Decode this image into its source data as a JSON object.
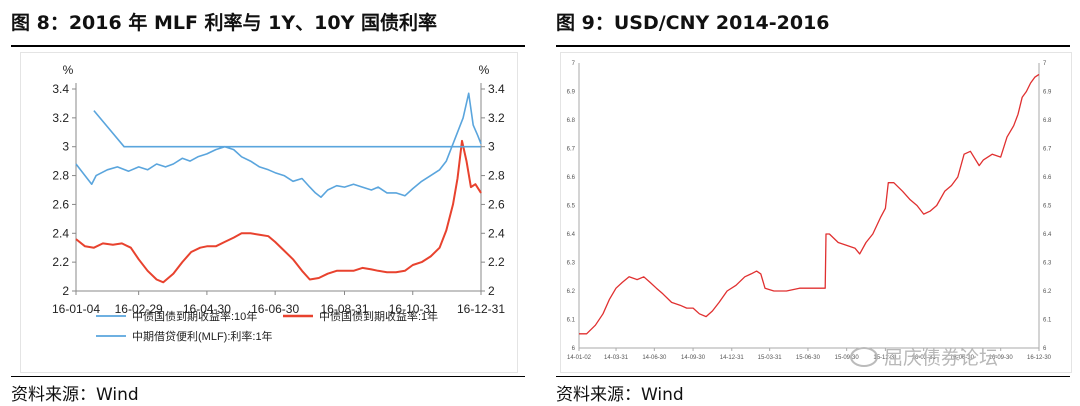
{
  "left_title": "图 8：2016 年 MLF 利率与 1Y、10Y 国债利率",
  "right_title": "图 9：USD/CNY 2014-2016",
  "left_source": "资料来源：Wind",
  "right_source": "资料来源：Wind",
  "watermark": "屈庆债券论坛",
  "colors": {
    "blue": "#5aa5dd",
    "red": "#e8422e",
    "usd_red": "#e03030"
  },
  "chart_data": [
    {
      "type": "line",
      "title": "",
      "ylabel_left": "%",
      "ylabel_right": "%",
      "ylim": [
        2.0,
        3.4
      ],
      "yticks": [
        "2",
        "2.2",
        "2.4",
        "2.6",
        "2.8",
        "3",
        "3.2",
        "3.4"
      ],
      "xlim": [
        "2016-01-04",
        "2016-12-31"
      ],
      "xticks": [
        "16-01-04",
        "16-02-29",
        "16-04-30",
        "16-06-30",
        "16-08-31",
        "16-10-31",
        "16-12-31"
      ],
      "grid": false,
      "legend_position": "bottom",
      "series": [
        {
          "name": "中债国债到期收益率:10年",
          "color": "#5aa5dd",
          "points": [
            [
              "2016-01-04",
              2.88
            ],
            [
              "2016-01-12",
              2.8
            ],
            [
              "2016-01-18",
              2.74
            ],
            [
              "2016-01-22",
              2.8
            ],
            [
              "2016-02-01",
              2.84
            ],
            [
              "2016-02-10",
              2.86
            ],
            [
              "2016-02-20",
              2.83
            ],
            [
              "2016-02-29",
              2.86
            ],
            [
              "2016-03-08",
              2.84
            ],
            [
              "2016-03-16",
              2.88
            ],
            [
              "2016-03-24",
              2.86
            ],
            [
              "2016-03-31",
              2.88
            ],
            [
              "2016-04-08",
              2.92
            ],
            [
              "2016-04-15",
              2.9
            ],
            [
              "2016-04-22",
              2.93
            ],
            [
              "2016-04-30",
              2.95
            ],
            [
              "2016-05-08",
              2.98
            ],
            [
              "2016-05-16",
              3.0
            ],
            [
              "2016-05-24",
              2.98
            ],
            [
              "2016-05-31",
              2.93
            ],
            [
              "2016-06-08",
              2.9
            ],
            [
              "2016-06-16",
              2.86
            ],
            [
              "2016-06-24",
              2.84
            ],
            [
              "2016-06-30",
              2.82
            ],
            [
              "2016-07-08",
              2.8
            ],
            [
              "2016-07-16",
              2.76
            ],
            [
              "2016-07-24",
              2.78
            ],
            [
              "2016-07-31",
              2.72
            ],
            [
              "2016-08-05",
              2.68
            ],
            [
              "2016-08-10",
              2.65
            ],
            [
              "2016-08-16",
              2.7
            ],
            [
              "2016-08-24",
              2.73
            ],
            [
              "2016-08-31",
              2.72
            ],
            [
              "2016-09-08",
              2.74
            ],
            [
              "2016-09-16",
              2.72
            ],
            [
              "2016-09-24",
              2.7
            ],
            [
              "2016-09-30",
              2.72
            ],
            [
              "2016-10-08",
              2.68
            ],
            [
              "2016-10-16",
              2.68
            ],
            [
              "2016-10-24",
              2.66
            ],
            [
              "2016-10-31",
              2.71
            ],
            [
              "2016-11-08",
              2.76
            ],
            [
              "2016-11-16",
              2.8
            ],
            [
              "2016-11-24",
              2.84
            ],
            [
              "2016-11-30",
              2.9
            ],
            [
              "2016-12-05",
              3.0
            ],
            [
              "2016-12-10",
              3.1
            ],
            [
              "2016-12-15",
              3.2
            ],
            [
              "2016-12-20",
              3.37
            ],
            [
              "2016-12-24",
              3.15
            ],
            [
              "2016-12-28",
              3.08
            ],
            [
              "2016-12-31",
              3.02
            ]
          ]
        },
        {
          "name": "中债国债到期收益率:1年",
          "color": "#e8422e",
          "points": [
            [
              "2016-01-04",
              2.36
            ],
            [
              "2016-01-12",
              2.31
            ],
            [
              "2016-01-20",
              2.3
            ],
            [
              "2016-01-28",
              2.33
            ],
            [
              "2016-02-06",
              2.32
            ],
            [
              "2016-02-14",
              2.33
            ],
            [
              "2016-02-22",
              2.3
            ],
            [
              "2016-02-29",
              2.22
            ],
            [
              "2016-03-08",
              2.14
            ],
            [
              "2016-03-16",
              2.08
            ],
            [
              "2016-03-22",
              2.06
            ],
            [
              "2016-03-31",
              2.12
            ],
            [
              "2016-04-08",
              2.2
            ],
            [
              "2016-04-16",
              2.27
            ],
            [
              "2016-04-24",
              2.3
            ],
            [
              "2016-04-30",
              2.31
            ],
            [
              "2016-05-08",
              2.31
            ],
            [
              "2016-05-16",
              2.34
            ],
            [
              "2016-05-24",
              2.37
            ],
            [
              "2016-05-31",
              2.4
            ],
            [
              "2016-06-08",
              2.4
            ],
            [
              "2016-06-16",
              2.39
            ],
            [
              "2016-06-24",
              2.38
            ],
            [
              "2016-06-30",
              2.34
            ],
            [
              "2016-07-08",
              2.28
            ],
            [
              "2016-07-16",
              2.22
            ],
            [
              "2016-07-24",
              2.14
            ],
            [
              "2016-07-31",
              2.08
            ],
            [
              "2016-08-08",
              2.09
            ],
            [
              "2016-08-16",
              2.12
            ],
            [
              "2016-08-24",
              2.14
            ],
            [
              "2016-08-31",
              2.14
            ],
            [
              "2016-09-08",
              2.14
            ],
            [
              "2016-09-16",
              2.16
            ],
            [
              "2016-09-24",
              2.15
            ],
            [
              "2016-09-30",
              2.14
            ],
            [
              "2016-10-08",
              2.13
            ],
            [
              "2016-10-16",
              2.13
            ],
            [
              "2016-10-24",
              2.14
            ],
            [
              "2016-10-31",
              2.18
            ],
            [
              "2016-11-08",
              2.2
            ],
            [
              "2016-11-16",
              2.24
            ],
            [
              "2016-11-24",
              2.3
            ],
            [
              "2016-11-30",
              2.42
            ],
            [
              "2016-12-06",
              2.6
            ],
            [
              "2016-12-10",
              2.78
            ],
            [
              "2016-12-14",
              3.04
            ],
            [
              "2016-12-18",
              2.9
            ],
            [
              "2016-12-22",
              2.72
            ],
            [
              "2016-12-26",
              2.74
            ],
            [
              "2016-12-31",
              2.68
            ]
          ]
        },
        {
          "name": "中期借贷便利(MLF):利率:1年",
          "color": "#5aa5dd",
          "points": [
            [
              "2016-01-20",
              3.25
            ],
            [
              "2016-02-16",
              3.0
            ],
            [
              "2016-12-31",
              3.0
            ]
          ]
        }
      ]
    },
    {
      "type": "line",
      "title": "",
      "ylim": [
        6.0,
        7.0
      ],
      "yticks": [
        "6",
        "6.1",
        "6.2",
        "6.3",
        "6.4",
        "6.5",
        "6.6",
        "6.7",
        "6.8",
        "6.9",
        "7"
      ],
      "xlim": [
        "2014-01-02",
        "2016-12-30"
      ],
      "xticks": [
        "14-01-02",
        "14-03-31",
        "14-06-30",
        "14-09-30",
        "14-12-31",
        "15-03-31",
        "15-06-30",
        "15-09-30",
        "15-12-31",
        "16-03-31",
        "16-06-30",
        "16-09-30",
        "16-12-30"
      ],
      "grid": false,
      "legend_position": "none",
      "series": [
        {
          "name": "",
          "color": "#e03030",
          "points": [
            [
              "2014-01-02",
              6.05
            ],
            [
              "2014-01-20",
              6.05
            ],
            [
              "2014-02-10",
              6.08
            ],
            [
              "2014-02-28",
              6.12
            ],
            [
              "2014-03-15",
              6.17
            ],
            [
              "2014-03-31",
              6.21
            ],
            [
              "2014-04-15",
              6.23
            ],
            [
              "2014-05-01",
              6.25
            ],
            [
              "2014-05-20",
              6.24
            ],
            [
              "2014-06-05",
              6.25
            ],
            [
              "2014-06-20",
              6.23
            ],
            [
              "2014-07-05",
              6.21
            ],
            [
              "2014-07-20",
              6.19
            ],
            [
              "2014-08-10",
              6.16
            ],
            [
              "2014-08-30",
              6.15
            ],
            [
              "2014-09-15",
              6.14
            ],
            [
              "2014-09-30",
              6.14
            ],
            [
              "2014-10-15",
              6.12
            ],
            [
              "2014-10-31",
              6.11
            ],
            [
              "2014-11-15",
              6.13
            ],
            [
              "2014-12-01",
              6.16
            ],
            [
              "2014-12-20",
              6.2
            ],
            [
              "2015-01-10",
              6.22
            ],
            [
              "2015-01-31",
              6.25
            ],
            [
              "2015-02-15",
              6.26
            ],
            [
              "2015-02-28",
              6.27
            ],
            [
              "2015-03-10",
              6.26
            ],
            [
              "2015-03-20",
              6.21
            ],
            [
              "2015-04-10",
              6.2
            ],
            [
              "2015-05-10",
              6.2
            ],
            [
              "2015-06-10",
              6.21
            ],
            [
              "2015-07-10",
              6.21
            ],
            [
              "2015-08-10",
              6.21
            ],
            [
              "2015-08-12",
              6.4
            ],
            [
              "2015-08-20",
              6.4
            ],
            [
              "2015-09-10",
              6.37
            ],
            [
              "2015-09-30",
              6.36
            ],
            [
              "2015-10-20",
              6.35
            ],
            [
              "2015-10-31",
              6.33
            ],
            [
              "2015-11-15",
              6.37
            ],
            [
              "2015-12-01",
              6.4
            ],
            [
              "2015-12-20",
              6.46
            ],
            [
              "2015-12-31",
              6.49
            ],
            [
              "2016-01-07",
              6.58
            ],
            [
              "2016-01-20",
              6.58
            ],
            [
              "2016-02-10",
              6.55
            ],
            [
              "2016-02-28",
              6.52
            ],
            [
              "2016-03-15",
              6.5
            ],
            [
              "2016-03-31",
              6.47
            ],
            [
              "2016-04-15",
              6.48
            ],
            [
              "2016-05-01",
              6.5
            ],
            [
              "2016-05-20",
              6.55
            ],
            [
              "2016-06-05",
              6.57
            ],
            [
              "2016-06-20",
              6.6
            ],
            [
              "2016-07-05",
              6.68
            ],
            [
              "2016-07-20",
              6.69
            ],
            [
              "2016-08-10",
              6.64
            ],
            [
              "2016-08-20",
              6.66
            ],
            [
              "2016-09-10",
              6.68
            ],
            [
              "2016-09-30",
              6.67
            ],
            [
              "2016-10-15",
              6.74
            ],
            [
              "2016-10-31",
              6.78
            ],
            [
              "2016-11-10",
              6.82
            ],
            [
              "2016-11-20",
              6.88
            ],
            [
              "2016-11-30",
              6.9
            ],
            [
              "2016-12-10",
              6.93
            ],
            [
              "2016-12-20",
              6.95
            ],
            [
              "2016-12-30",
              6.96
            ]
          ]
        }
      ]
    }
  ]
}
